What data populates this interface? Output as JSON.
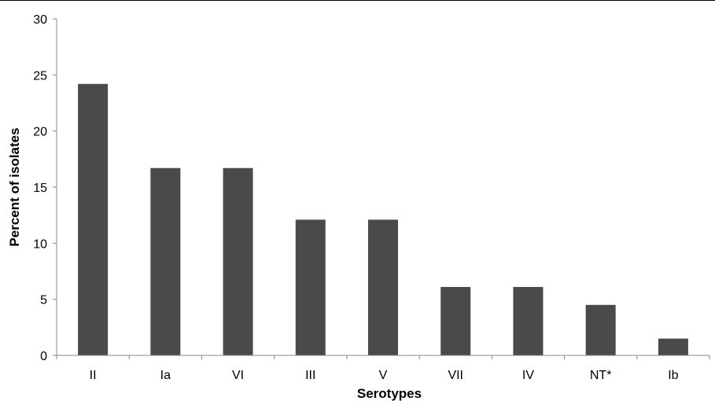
{
  "chart_data": {
    "type": "bar",
    "title": "",
    "xlabel": "Serotypes",
    "ylabel": "Percent of isolates",
    "categories": [
      "II",
      "Ia",
      "VI",
      "III",
      "V",
      "VII",
      "IV",
      "NT*",
      "Ib"
    ],
    "values": [
      24.2,
      16.7,
      16.7,
      12.1,
      12.1,
      6.1,
      6.1,
      4.5,
      1.5
    ],
    "ylim": [
      0,
      30
    ],
    "yticks": [
      0,
      5,
      10,
      15,
      20,
      25,
      30
    ],
    "grid": false,
    "legend": "none",
    "bar_color": "#4a4a4a"
  }
}
